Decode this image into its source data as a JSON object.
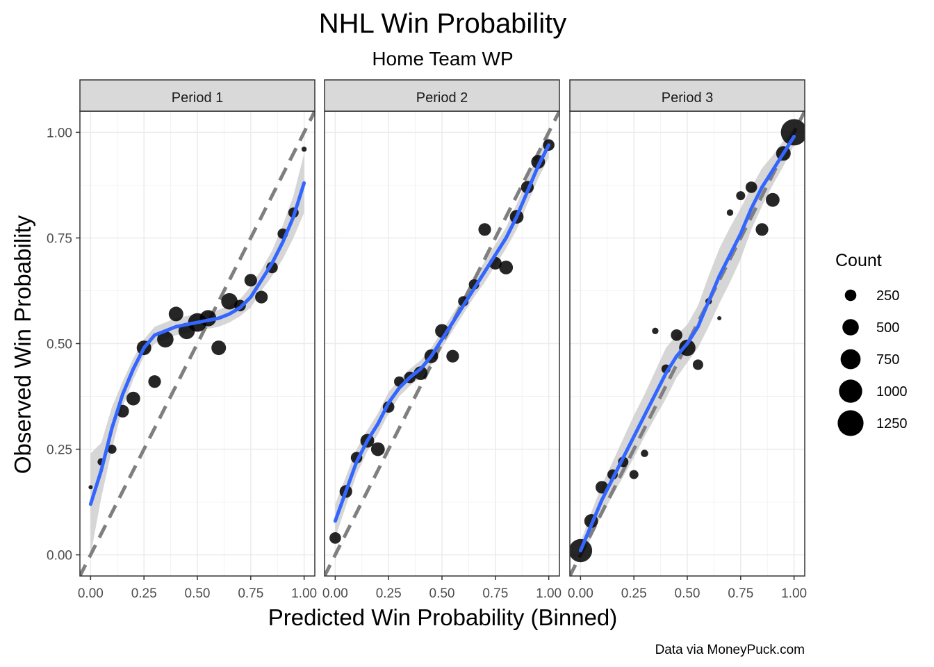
{
  "chart_data": {
    "type": "scatter",
    "title": "NHL Win Probability",
    "subtitle": "Home Team WP",
    "xlabel": "Predicted Win Probability (Binned)",
    "ylabel": "Observed Win Probability",
    "caption": "Data via MoneyPuck.com",
    "xlim": [
      -0.05,
      1.05
    ],
    "ylim": [
      -0.05,
      1.05
    ],
    "x_ticks": [
      "0.00",
      "0.25",
      "0.50",
      "0.75",
      "1.00"
    ],
    "y_ticks": [
      "0.00",
      "0.25",
      "0.50",
      "0.75",
      "1.00"
    ],
    "grid": true,
    "reference_line": "y = x (dashed)",
    "legend": {
      "title": "Count",
      "position": "right",
      "values": [
        250,
        500,
        750,
        1000,
        1250
      ],
      "labels": [
        "250",
        "500",
        "750",
        "1000",
        "1250"
      ]
    },
    "colors": {
      "points": "#000000",
      "smooth": "#3366ff",
      "ribbon": "#c8c8c8",
      "reference": "#7f7f7f"
    },
    "panels": [
      {
        "label": "Period 1",
        "points": [
          {
            "x": 0.0,
            "y": 0.16,
            "count": 30
          },
          {
            "x": 0.05,
            "y": 0.22,
            "count": 100
          },
          {
            "x": 0.1,
            "y": 0.25,
            "count": 150
          },
          {
            "x": 0.15,
            "y": 0.34,
            "count": 300
          },
          {
            "x": 0.2,
            "y": 0.37,
            "count": 350
          },
          {
            "x": 0.25,
            "y": 0.49,
            "count": 400
          },
          {
            "x": 0.3,
            "y": 0.41,
            "count": 300
          },
          {
            "x": 0.35,
            "y": 0.51,
            "count": 500
          },
          {
            "x": 0.4,
            "y": 0.57,
            "count": 400
          },
          {
            "x": 0.45,
            "y": 0.53,
            "count": 500
          },
          {
            "x": 0.5,
            "y": 0.55,
            "count": 650
          },
          {
            "x": 0.55,
            "y": 0.56,
            "count": 500
          },
          {
            "x": 0.6,
            "y": 0.49,
            "count": 400
          },
          {
            "x": 0.65,
            "y": 0.6,
            "count": 500
          },
          {
            "x": 0.7,
            "y": 0.59,
            "count": 250
          },
          {
            "x": 0.75,
            "y": 0.65,
            "count": 300
          },
          {
            "x": 0.8,
            "y": 0.61,
            "count": 300
          },
          {
            "x": 0.85,
            "y": 0.68,
            "count": 250
          },
          {
            "x": 0.9,
            "y": 0.76,
            "count": 200
          },
          {
            "x": 0.95,
            "y": 0.81,
            "count": 200
          },
          {
            "x": 1.0,
            "y": 0.96,
            "count": 50
          }
        ],
        "smooth": [
          [
            0.0,
            0.12
          ],
          [
            0.05,
            0.2
          ],
          [
            0.1,
            0.3
          ],
          [
            0.15,
            0.38
          ],
          [
            0.2,
            0.44
          ],
          [
            0.25,
            0.49
          ],
          [
            0.3,
            0.52
          ],
          [
            0.35,
            0.53
          ],
          [
            0.4,
            0.54
          ],
          [
            0.45,
            0.545
          ],
          [
            0.5,
            0.55
          ],
          [
            0.55,
            0.555
          ],
          [
            0.6,
            0.56
          ],
          [
            0.65,
            0.57
          ],
          [
            0.7,
            0.585
          ],
          [
            0.75,
            0.61
          ],
          [
            0.8,
            0.65
          ],
          [
            0.85,
            0.69
          ],
          [
            0.9,
            0.74
          ],
          [
            0.95,
            0.8
          ],
          [
            1.0,
            0.88
          ]
        ],
        "band": [
          0.12,
          0.065,
          0.05,
          0.03,
          0.025,
          0.02,
          0.02,
          0.02,
          0.02,
          0.02,
          0.02,
          0.02,
          0.02,
          0.02,
          0.02,
          0.025,
          0.025,
          0.03,
          0.04,
          0.05,
          0.07
        ]
      },
      {
        "label": "Period 2",
        "points": [
          {
            "x": 0.0,
            "y": 0.04,
            "count": 250
          },
          {
            "x": 0.05,
            "y": 0.15,
            "count": 300
          },
          {
            "x": 0.1,
            "y": 0.23,
            "count": 250
          },
          {
            "x": 0.15,
            "y": 0.27,
            "count": 350
          },
          {
            "x": 0.2,
            "y": 0.25,
            "count": 350
          },
          {
            "x": 0.25,
            "y": 0.35,
            "count": 250
          },
          {
            "x": 0.3,
            "y": 0.41,
            "count": 200
          },
          {
            "x": 0.35,
            "y": 0.42,
            "count": 250
          },
          {
            "x": 0.4,
            "y": 0.43,
            "count": 350
          },
          {
            "x": 0.45,
            "y": 0.47,
            "count": 350
          },
          {
            "x": 0.5,
            "y": 0.53,
            "count": 350
          },
          {
            "x": 0.55,
            "y": 0.47,
            "count": 300
          },
          {
            "x": 0.6,
            "y": 0.6,
            "count": 200
          },
          {
            "x": 0.65,
            "y": 0.64,
            "count": 200
          },
          {
            "x": 0.7,
            "y": 0.77,
            "count": 300
          },
          {
            "x": 0.75,
            "y": 0.69,
            "count": 300
          },
          {
            "x": 0.8,
            "y": 0.68,
            "count": 350
          },
          {
            "x": 0.85,
            "y": 0.8,
            "count": 350
          },
          {
            "x": 0.9,
            "y": 0.87,
            "count": 300
          },
          {
            "x": 0.95,
            "y": 0.93,
            "count": 350
          },
          {
            "x": 1.0,
            "y": 0.97,
            "count": 250
          }
        ],
        "smooth": [
          [
            0.0,
            0.08
          ],
          [
            0.05,
            0.15
          ],
          [
            0.1,
            0.22
          ],
          [
            0.15,
            0.27
          ],
          [
            0.2,
            0.31
          ],
          [
            0.25,
            0.36
          ],
          [
            0.3,
            0.395
          ],
          [
            0.35,
            0.42
          ],
          [
            0.4,
            0.44
          ],
          [
            0.45,
            0.47
          ],
          [
            0.5,
            0.51
          ],
          [
            0.55,
            0.55
          ],
          [
            0.6,
            0.59
          ],
          [
            0.65,
            0.63
          ],
          [
            0.7,
            0.67
          ],
          [
            0.75,
            0.71
          ],
          [
            0.8,
            0.75
          ],
          [
            0.85,
            0.8
          ],
          [
            0.9,
            0.86
          ],
          [
            0.95,
            0.92
          ],
          [
            1.0,
            0.97
          ]
        ],
        "band": [
          0.04,
          0.035,
          0.03,
          0.025,
          0.025,
          0.025,
          0.02,
          0.02,
          0.02,
          0.02,
          0.02,
          0.02,
          0.02,
          0.02,
          0.025,
          0.025,
          0.025,
          0.03,
          0.03,
          0.03,
          0.03
        ]
      },
      {
        "label": "Period 3",
        "points": [
          {
            "x": 0.0,
            "y": 0.01,
            "count": 1000
          },
          {
            "x": 0.05,
            "y": 0.08,
            "count": 350
          },
          {
            "x": 0.1,
            "y": 0.16,
            "count": 300
          },
          {
            "x": 0.15,
            "y": 0.19,
            "count": 200
          },
          {
            "x": 0.2,
            "y": 0.22,
            "count": 200
          },
          {
            "x": 0.25,
            "y": 0.19,
            "count": 150
          },
          {
            "x": 0.3,
            "y": 0.24,
            "count": 100
          },
          {
            "x": 0.35,
            "y": 0.53,
            "count": 80
          },
          {
            "x": 0.4,
            "y": 0.44,
            "count": 150
          },
          {
            "x": 0.45,
            "y": 0.52,
            "count": 250
          },
          {
            "x": 0.5,
            "y": 0.49,
            "count": 500
          },
          {
            "x": 0.55,
            "y": 0.45,
            "count": 200
          },
          {
            "x": 0.6,
            "y": 0.6,
            "count": 80
          },
          {
            "x": 0.65,
            "y": 0.56,
            "count": 30
          },
          {
            "x": 0.7,
            "y": 0.81,
            "count": 80
          },
          {
            "x": 0.75,
            "y": 0.85,
            "count": 150
          },
          {
            "x": 0.8,
            "y": 0.87,
            "count": 250
          },
          {
            "x": 0.85,
            "y": 0.77,
            "count": 300
          },
          {
            "x": 0.9,
            "y": 0.84,
            "count": 350
          },
          {
            "x": 0.95,
            "y": 0.95,
            "count": 400
          },
          {
            "x": 1.0,
            "y": 1.0,
            "count": 1300
          }
        ],
        "smooth": [
          [
            0.0,
            0.01
          ],
          [
            0.05,
            0.07
          ],
          [
            0.1,
            0.13
          ],
          [
            0.15,
            0.18
          ],
          [
            0.2,
            0.23
          ],
          [
            0.25,
            0.28
          ],
          [
            0.3,
            0.33
          ],
          [
            0.35,
            0.38
          ],
          [
            0.4,
            0.43
          ],
          [
            0.45,
            0.47
          ],
          [
            0.5,
            0.5
          ],
          [
            0.55,
            0.54
          ],
          [
            0.6,
            0.6
          ],
          [
            0.65,
            0.66
          ],
          [
            0.7,
            0.71
          ],
          [
            0.75,
            0.76
          ],
          [
            0.8,
            0.82
          ],
          [
            0.85,
            0.87
          ],
          [
            0.9,
            0.91
          ],
          [
            0.95,
            0.95
          ],
          [
            1.0,
            0.99
          ]
        ],
        "band": [
          0.02,
          0.03,
          0.035,
          0.04,
          0.045,
          0.05,
          0.05,
          0.055,
          0.06,
          0.05,
          0.045,
          0.05,
          0.06,
          0.065,
          0.065,
          0.06,
          0.05,
          0.045,
          0.035,
          0.03,
          0.02
        ]
      }
    ]
  }
}
